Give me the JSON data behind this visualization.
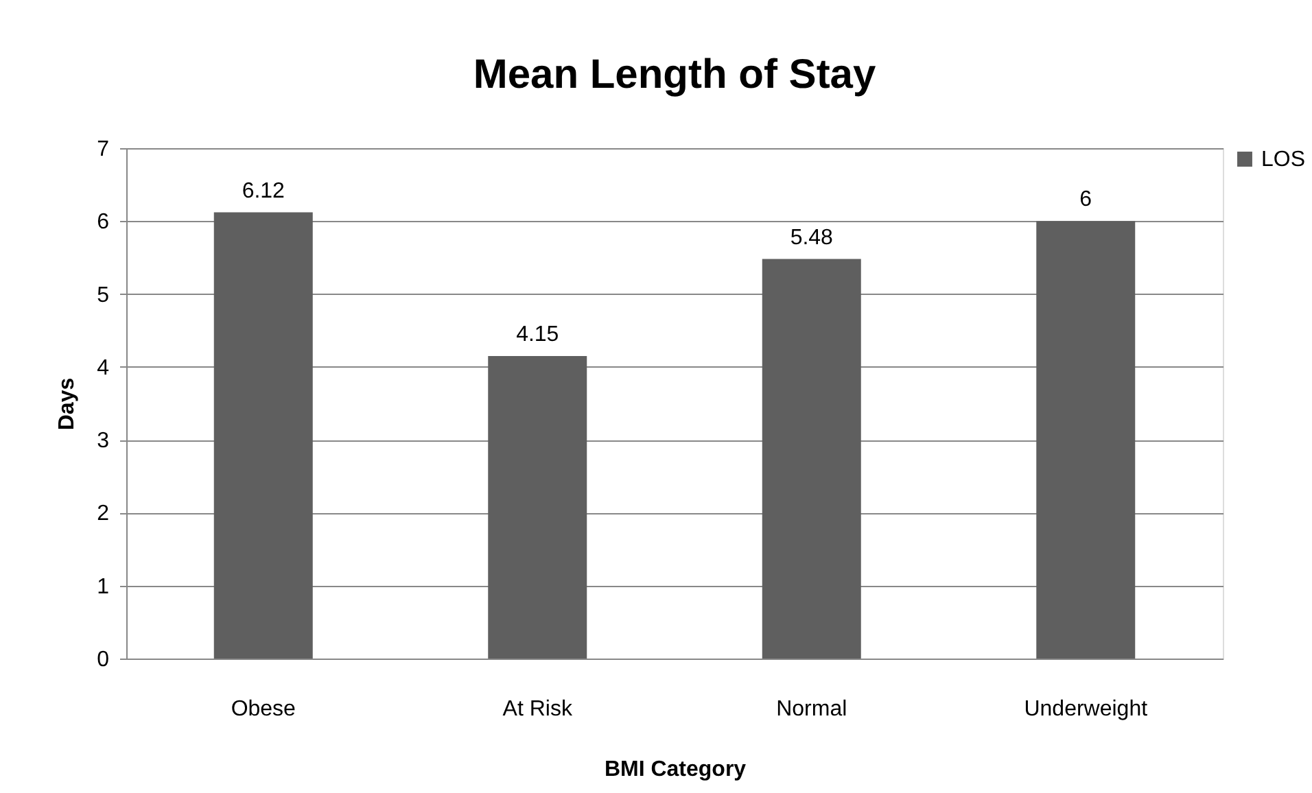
{
  "chart_data": {
    "type": "bar",
    "title": "Mean Length of Stay",
    "xlabel": "BMI Category",
    "ylabel": "Days",
    "categories": [
      "Obese",
      "At Risk",
      "Normal",
      "Underweight"
    ],
    "series": [
      {
        "name": "LOS",
        "color": "#5f5f5f",
        "values": [
          6.12,
          4.15,
          5.48,
          6
        ]
      }
    ],
    "ylim": [
      0,
      7
    ],
    "yticks": [
      0,
      1,
      2,
      3,
      4,
      5,
      6,
      7
    ],
    "grid": "y",
    "legend": "right",
    "data_labels": true
  }
}
